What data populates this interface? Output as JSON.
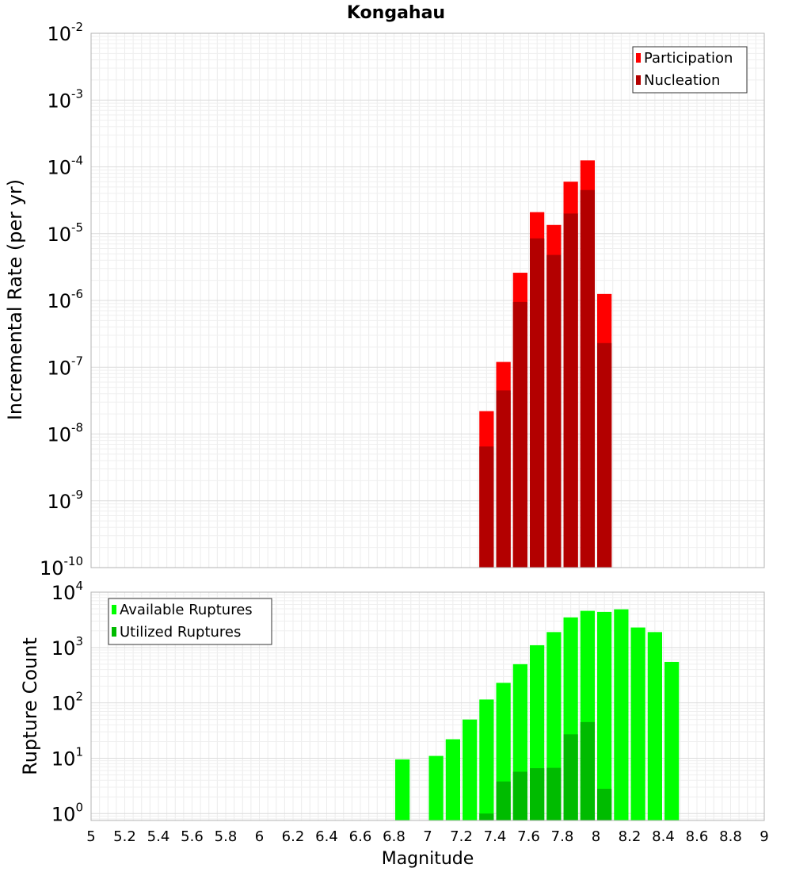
{
  "chart_data": [
    {
      "type": "bar",
      "title": "Kongahau",
      "xlabel": "",
      "ylabel": "Incremental Rate (per yr)",
      "yscale": "log",
      "ylim": [
        1e-10,
        0.01
      ],
      "xlim": [
        5,
        9
      ],
      "bin_width": 0.1,
      "legend_position": "top-right",
      "series": [
        {
          "name": "Participation",
          "color": "#ff0000",
          "x": [
            7.35,
            7.45,
            7.55,
            7.65,
            7.75,
            7.85,
            7.95,
            8.05
          ],
          "values": [
            2.2e-08,
            1.2e-07,
            2.6e-06,
            2.1e-05,
            1.35e-05,
            6e-05,
            0.000125,
            1.25e-06
          ]
        },
        {
          "name": "Nucleation",
          "color": "#b30000",
          "x": [
            7.35,
            7.45,
            7.55,
            7.65,
            7.75,
            7.85,
            7.95,
            8.05
          ],
          "values": [
            6.5e-09,
            4.5e-08,
            9.5e-07,
            8.5e-06,
            4.8e-06,
            2e-05,
            4.5e-05,
            2.3e-07
          ]
        }
      ]
    },
    {
      "type": "bar",
      "xlabel": "Magnitude",
      "ylabel": "Rupture Count",
      "yscale": "log",
      "ylim": [
        0.75,
        10000
      ],
      "xlim": [
        5,
        9
      ],
      "bin_width": 0.1,
      "legend_position": "top-left",
      "x_ticks": [
        "5",
        "5.2",
        "5.4",
        "5.6",
        "5.8",
        "6",
        "6.2",
        "6.4",
        "6.6",
        "6.8",
        "7",
        "7.2",
        "7.4",
        "7.6",
        "7.8",
        "8",
        "8.2",
        "8.4",
        "8.6",
        "8.8",
        "9"
      ],
      "series": [
        {
          "name": "Available Ruptures",
          "color": "#00ff00",
          "x": [
            6.85,
            7.05,
            7.15,
            7.25,
            7.35,
            7.45,
            7.55,
            7.65,
            7.75,
            7.85,
            7.95,
            8.05,
            8.15,
            8.25,
            8.35,
            8.45
          ],
          "values": [
            9.5,
            11,
            22,
            50,
            115,
            230,
            500,
            1100,
            1900,
            3500,
            4600,
            4400,
            4900,
            2300,
            1900,
            550
          ]
        },
        {
          "name": "Utilized Ruptures",
          "color": "#00bb00",
          "x": [
            7.35,
            7.45,
            7.55,
            7.65,
            7.75,
            7.85,
            7.95,
            8.05
          ],
          "values": [
            1.0,
            3.8,
            5.7,
            6.6,
            6.7,
            27,
            45,
            2.8
          ]
        }
      ]
    }
  ]
}
